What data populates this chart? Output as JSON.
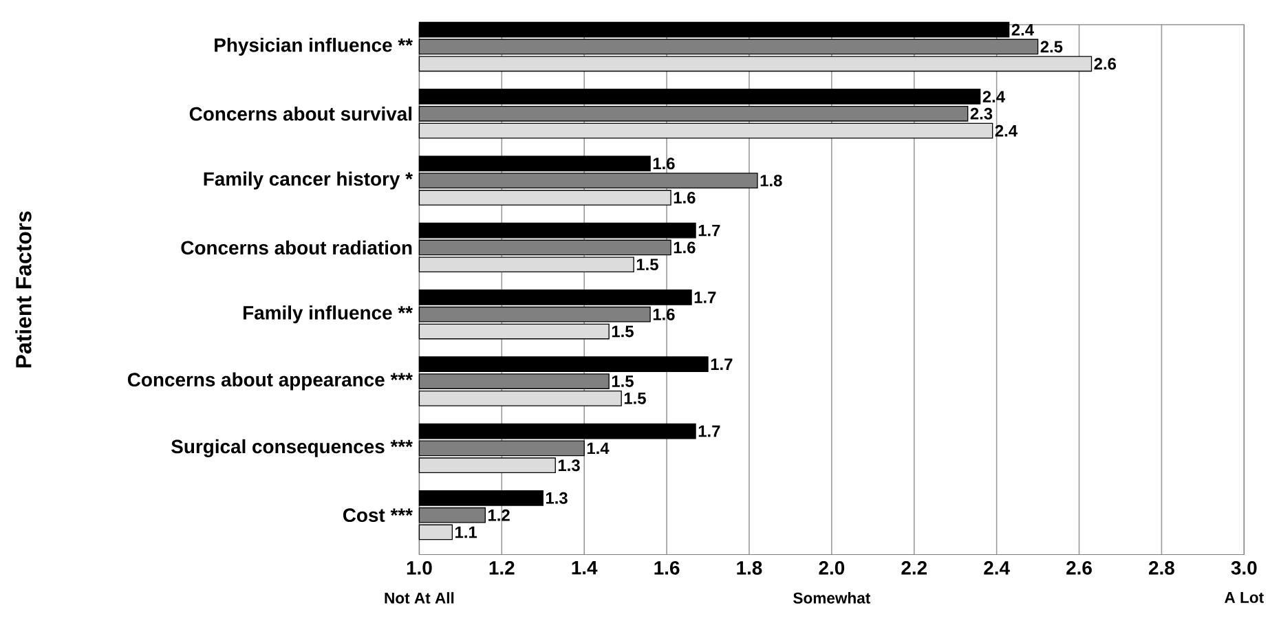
{
  "chart_data": {
    "type": "bar",
    "orientation": "horizontal",
    "ylabel": "Patient Factors",
    "categories": [
      "Physician influence **",
      "Concerns about survival",
      "Family cancer history *",
      "Concerns about radiation",
      "Family influence **",
      "Concerns about appearance ***",
      "Surgical consequences ***",
      "Cost ***"
    ],
    "series": [
      {
        "color": "#000000",
        "values": [
          2.43,
          2.36,
          1.56,
          1.67,
          1.66,
          1.7,
          1.67,
          1.3
        ],
        "value_labels": [
          "2.4",
          "2.4",
          "1.6",
          "1.7",
          "1.7",
          "1.7",
          "1.7",
          "1.3"
        ]
      },
      {
        "color": "#808080",
        "values": [
          2.5,
          2.33,
          1.82,
          1.61,
          1.56,
          1.46,
          1.4,
          1.16
        ],
        "value_labels": [
          "2.5",
          "2.3",
          "1.8",
          "1.6",
          "1.6",
          "1.5",
          "1.4",
          "1.2"
        ]
      },
      {
        "color": "#dcdcdc",
        "values": [
          2.63,
          2.39,
          1.61,
          1.52,
          1.46,
          1.49,
          1.33,
          1.08
        ],
        "value_labels": [
          "2.6",
          "2.4",
          "1.6",
          "1.5",
          "1.5",
          "1.5",
          "1.3",
          "1.1"
        ]
      }
    ],
    "xlim": [
      1.0,
      3.0
    ],
    "xticks": [
      {
        "value": 1.0,
        "label": "1.0"
      },
      {
        "value": 1.2,
        "label": "1.2"
      },
      {
        "value": 1.4,
        "label": "1.4"
      },
      {
        "value": 1.6,
        "label": "1.6"
      },
      {
        "value": 1.8,
        "label": "1.8"
      },
      {
        "value": 2.0,
        "label": "2.0"
      },
      {
        "value": 2.2,
        "label": "2.2"
      },
      {
        "value": 2.4,
        "label": "2.4"
      },
      {
        "value": 2.6,
        "label": "2.6"
      },
      {
        "value": 2.8,
        "label": "2.8"
      },
      {
        "value": 3.0,
        "label": "3.0"
      }
    ],
    "annotations": [
      "Not At All",
      "Somewhat",
      "A Lot"
    ],
    "grid": "x"
  }
}
